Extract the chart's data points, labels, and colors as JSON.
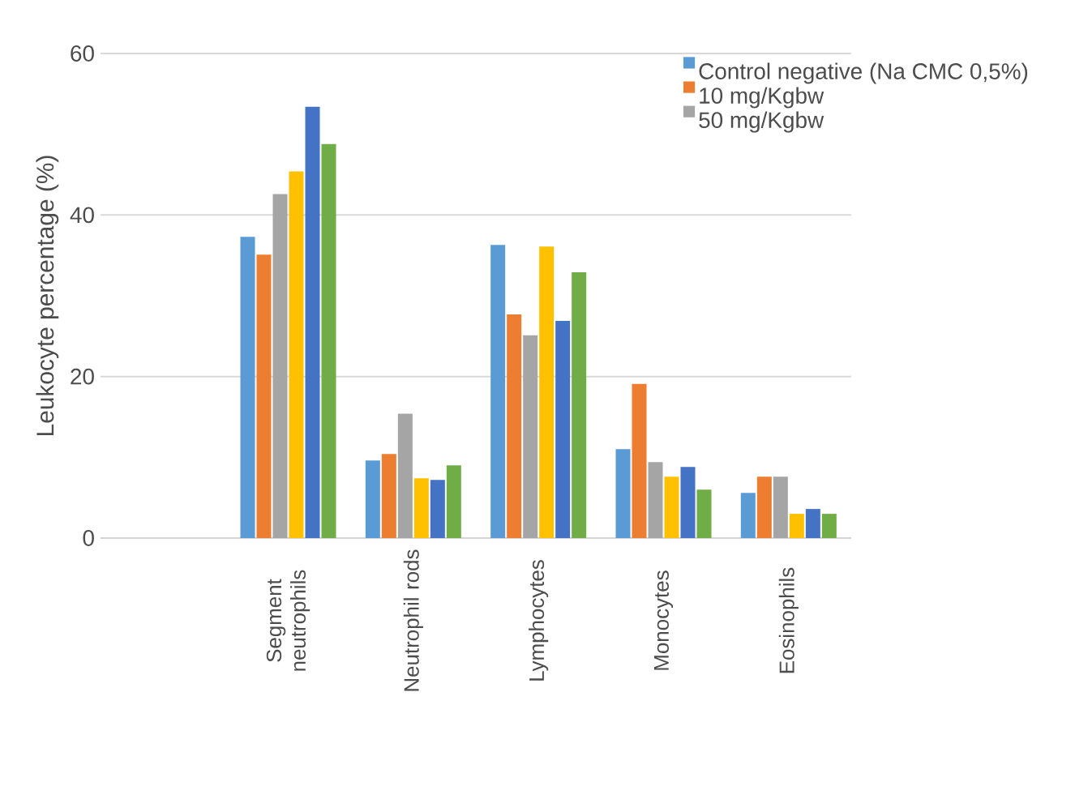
{
  "chart_data": {
    "type": "bar",
    "ylabel": "Leukocyte percentage (%)",
    "categories": [
      null,
      "Segment neutrophils",
      "Neutrophil rods",
      "Lymphocytes",
      "Monocytes",
      "Eosinophils"
    ],
    "series": [
      {
        "name": "Control negative (Na CMC 0,5%)",
        "color": "#5b9bd5",
        "values": [
          null,
          37.3,
          9.6,
          36.3,
          11.0,
          5.6
        ]
      },
      {
        "name": "10 mg/Kgbw",
        "color": "#ed7d31",
        "values": [
          null,
          35.1,
          10.4,
          27.7,
          19.1,
          7.6
        ]
      },
      {
        "name": "50 mg/Kgbw",
        "color": "#a5a5a5",
        "values": [
          null,
          42.6,
          15.4,
          25.1,
          9.4,
          7.6
        ]
      },
      {
        "color": "#ffc000",
        "values": [
          null,
          45.4,
          7.4,
          36.1,
          7.6,
          3.0
        ]
      },
      {
        "color": "#4472c4",
        "values": [
          null,
          53.4,
          7.2,
          26.9,
          8.8,
          3.6
        ]
      },
      {
        "color": "#70ad47",
        "values": [
          null,
          48.8,
          9.0,
          32.9,
          6.0,
          3.0
        ]
      }
    ],
    "ylim": [
      0,
      60
    ],
    "yticks": [
      0,
      20,
      40,
      60
    ],
    "grid": "y",
    "legend": "top right"
  }
}
